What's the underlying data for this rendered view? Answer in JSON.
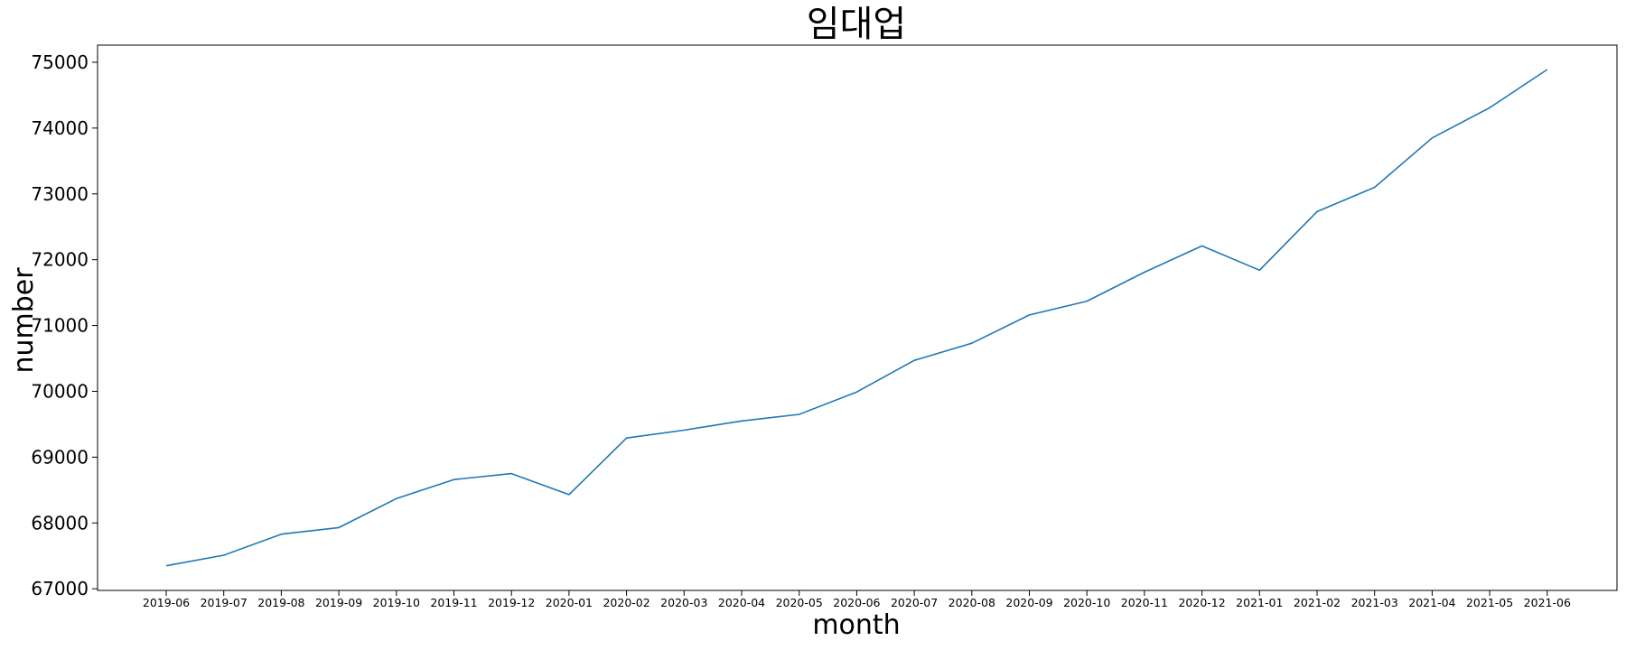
{
  "chart_data": {
    "type": "line",
    "title": "임대업",
    "xlabel": "month",
    "ylabel": "number",
    "ylim": [
      66975,
      75260
    ],
    "yticks": [
      67000,
      68000,
      69000,
      70000,
      71000,
      72000,
      73000,
      74000,
      75000
    ],
    "grid": false,
    "x": [
      "2019-06",
      "2019-07",
      "2019-08",
      "2019-09",
      "2019-10",
      "2019-11",
      "2019-12",
      "2020-01",
      "2020-02",
      "2020-03",
      "2020-04",
      "2020-05",
      "2020-06",
      "2020-07",
      "2020-08",
      "2020-09",
      "2020-10",
      "2020-11",
      "2020-12",
      "2021-01",
      "2021-02",
      "2021-03",
      "2021-04",
      "2021-05",
      "2021-06"
    ],
    "series": [
      {
        "color": "#1f77b4",
        "values": [
          67350,
          67510,
          67830,
          67930,
          68370,
          68660,
          68750,
          68430,
          69290,
          69410,
          69550,
          69650,
          69990,
          70470,
          70730,
          71160,
          71370,
          71810,
          72210,
          71840,
          72730,
          73100,
          73850,
          74310,
          74890
        ]
      }
    ]
  }
}
